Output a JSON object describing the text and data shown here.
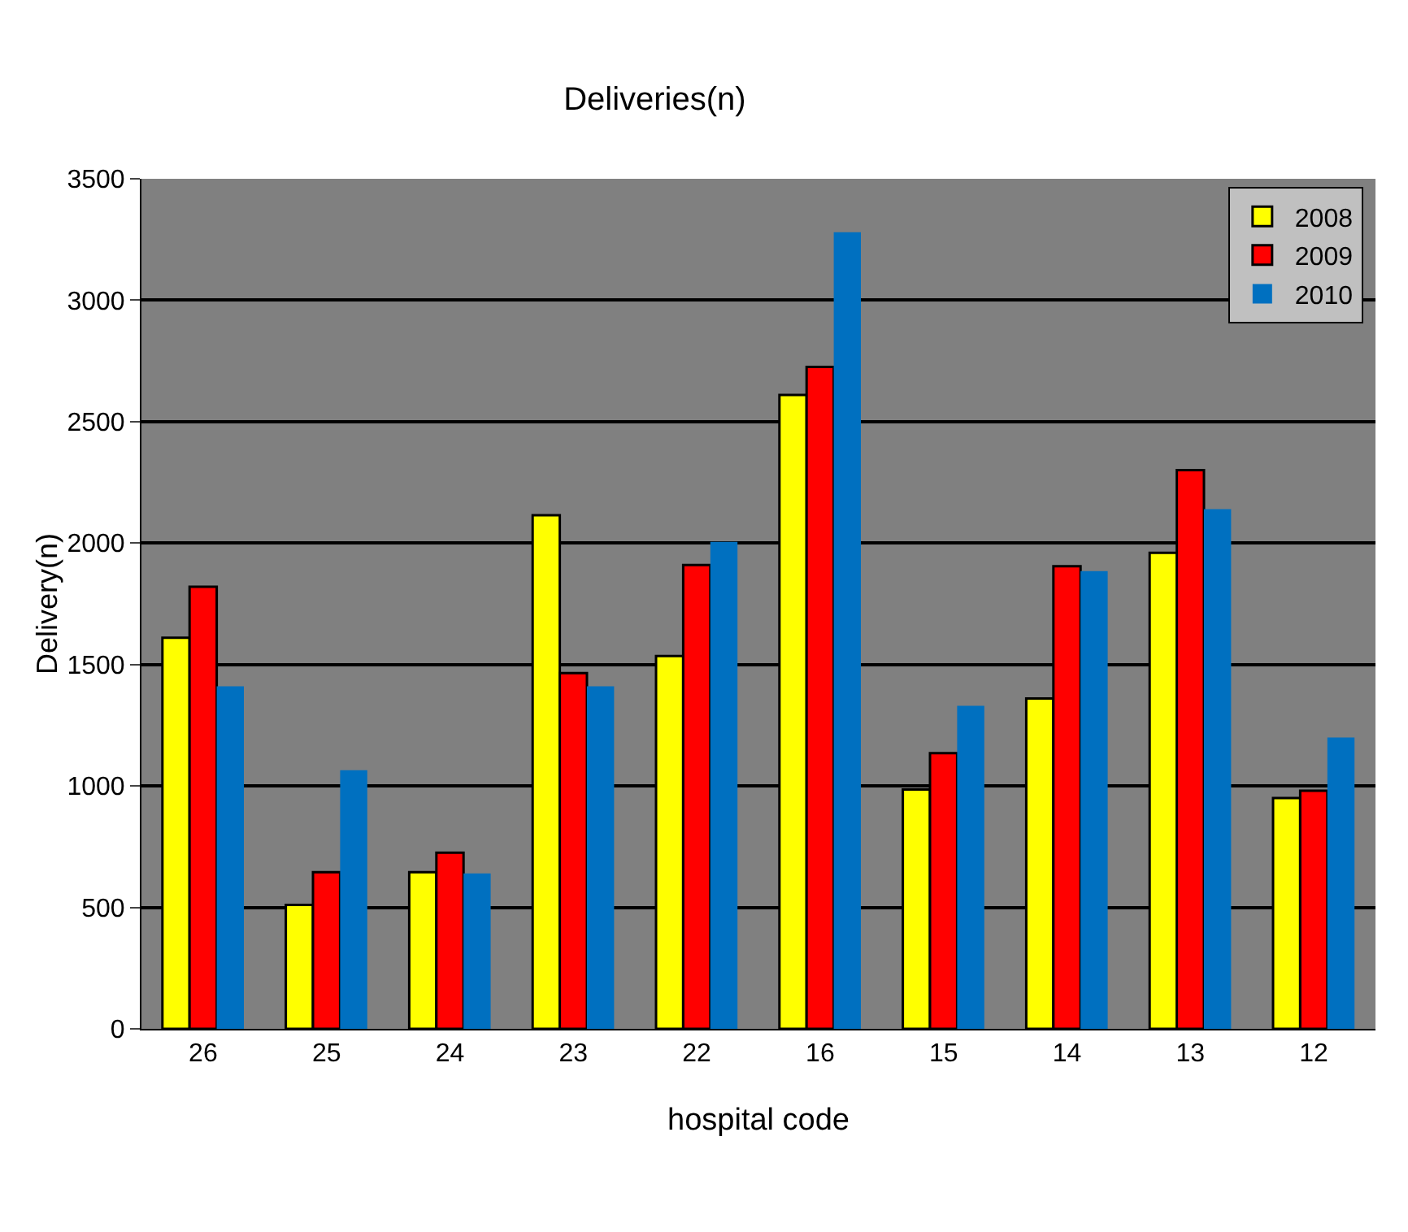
{
  "chart_data": {
    "type": "bar",
    "title": "Deliveries(n)",
    "xlabel": "hospital code",
    "ylabel": "Delivery(n)",
    "categories": [
      "26",
      "25",
      "24",
      "23",
      "22",
      "16",
      "15",
      "14",
      "13",
      "12"
    ],
    "series": [
      {
        "name": "2008",
        "color": "#ffff00",
        "values": [
          1610,
          510,
          645,
          2115,
          1535,
          2610,
          985,
          1360,
          1960,
          950
        ]
      },
      {
        "name": "2009",
        "color": "#ff0000",
        "values": [
          1820,
          645,
          725,
          1465,
          1910,
          2725,
          1135,
          1905,
          2300,
          980
        ]
      },
      {
        "name": "2010",
        "color": "#0070c0",
        "values": [
          1410,
          1065,
          640,
          1410,
          2005,
          3280,
          1330,
          1885,
          2140,
          1200
        ]
      }
    ],
    "ylim": [
      0,
      3500
    ],
    "yticks": [
      0,
      500,
      1000,
      1500,
      2000,
      2500,
      3000,
      3500
    ],
    "grid": "y",
    "legend": "top right"
  }
}
